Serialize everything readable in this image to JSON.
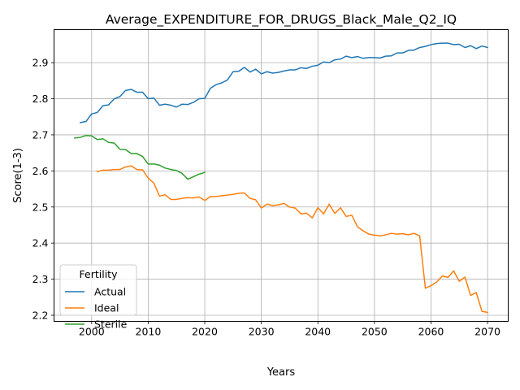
{
  "chart_data": {
    "type": "line",
    "title": "Average_EXPENDITURE_FOR_DRUGS_Black_Male_Q2_IQ",
    "xlabel": "Years",
    "ylabel": "Score(1-3)",
    "xlim": [
      1993.35,
      2073.65
    ],
    "ylim": [
      2.1831,
      2.9915
    ],
    "x_ticks": [
      2000,
      2010,
      2020,
      2030,
      2040,
      2050,
      2060,
      2070
    ],
    "y_ticks": [
      2.2,
      2.3,
      2.4,
      2.5,
      2.6,
      2.7,
      2.8,
      2.9
    ],
    "grid": true,
    "legend": {
      "title": "Fertility",
      "placement": "lower-left"
    },
    "series": [
      {
        "name": "Actual",
        "color": "#1f77b4",
        "x": [
          1998,
          1999,
          2000,
          2001,
          2002,
          2003,
          2004,
          2005,
          2006,
          2007,
          2008,
          2009,
          2010,
          2011,
          2012,
          2013,
          2014,
          2015,
          2016,
          2017,
          2018,
          2019,
          2020,
          2021,
          2022,
          2023,
          2024,
          2025,
          2026,
          2027,
          2028,
          2029,
          2030,
          2031,
          2032,
          2033,
          2034,
          2035,
          2036,
          2037,
          2038,
          2039,
          2040,
          2041,
          2042,
          2043,
          2044,
          2045,
          2046,
          2047,
          2048,
          2049,
          2050,
          2051,
          2052,
          2053,
          2054,
          2055,
          2056,
          2057,
          2058,
          2059,
          2060,
          2061,
          2062,
          2063,
          2064,
          2065,
          2066,
          2067,
          2068,
          2069,
          2070
        ],
        "values": [
          2.734,
          2.737,
          2.758,
          2.762,
          2.781,
          2.783,
          2.8,
          2.806,
          2.823,
          2.826,
          2.818,
          2.818,
          2.8,
          2.802,
          2.782,
          2.785,
          2.782,
          2.777,
          2.785,
          2.784,
          2.79,
          2.8,
          2.801,
          2.829,
          2.839,
          2.844,
          2.852,
          2.875,
          2.876,
          2.887,
          2.874,
          2.882,
          2.869,
          2.875,
          2.871,
          2.873,
          2.877,
          2.88,
          2.88,
          2.886,
          2.884,
          2.89,
          2.893,
          2.902,
          2.9,
          2.908,
          2.91,
          2.918,
          2.914,
          2.917,
          2.912,
          2.914,
          2.914,
          2.913,
          2.918,
          2.919,
          2.927,
          2.927,
          2.934,
          2.935,
          2.942,
          2.945,
          2.95,
          2.953,
          2.954,
          2.954,
          2.95,
          2.951,
          2.942,
          2.947,
          2.939,
          2.946,
          2.942
        ]
      },
      {
        "name": "Ideal",
        "color": "#ff7f0e",
        "x": [
          2001,
          2002,
          2003,
          2004,
          2005,
          2006,
          2007,
          2008,
          2009,
          2010,
          2011,
          2012,
          2013,
          2014,
          2015,
          2016,
          2017,
          2018,
          2019,
          2020,
          2021,
          2022,
          2023,
          2024,
          2025,
          2026,
          2027,
          2028,
          2029,
          2030,
          2031,
          2032,
          2033,
          2034,
          2035,
          2036,
          2037,
          2038,
          2039,
          2040,
          2041,
          2042,
          2043,
          2044,
          2045,
          2046,
          2047,
          2048,
          2049,
          2050,
          2051,
          2052,
          2053,
          2054,
          2055,
          2056,
          2057,
          2058,
          2059,
          2060,
          2061,
          2062,
          2063,
          2064,
          2065,
          2066,
          2067,
          2068,
          2069,
          2070
        ],
        "values": [
          2.598,
          2.602,
          2.602,
          2.604,
          2.604,
          2.611,
          2.614,
          2.604,
          2.603,
          2.58,
          2.566,
          2.53,
          2.534,
          2.521,
          2.521,
          2.524,
          2.526,
          2.525,
          2.528,
          2.518,
          2.529,
          2.529,
          2.531,
          2.533,
          2.535,
          2.538,
          2.539,
          2.524,
          2.52,
          2.497,
          2.508,
          2.504,
          2.506,
          2.51,
          2.5,
          2.497,
          2.481,
          2.483,
          2.47,
          2.498,
          2.481,
          2.508,
          2.482,
          2.498,
          2.474,
          2.477,
          2.445,
          2.434,
          2.425,
          2.422,
          2.42,
          2.423,
          2.427,
          2.425,
          2.426,
          2.423,
          2.427,
          2.42,
          2.275,
          2.282,
          2.292,
          2.309,
          2.305,
          2.323,
          2.294,
          2.306,
          2.255,
          2.263,
          2.211,
          2.208
        ]
      },
      {
        "name": "Sterile",
        "color": "#2ca02c",
        "x": [
          1997,
          1998,
          1999,
          2000,
          2001,
          2002,
          2003,
          2004,
          2005,
          2006,
          2007,
          2008,
          2009,
          2010,
          2011,
          2012,
          2013,
          2014,
          2015,
          2016,
          2017,
          2018,
          2019,
          2020
        ],
        "values": [
          2.691,
          2.693,
          2.698,
          2.697,
          2.687,
          2.689,
          2.679,
          2.677,
          2.66,
          2.659,
          2.648,
          2.648,
          2.64,
          2.619,
          2.619,
          2.616,
          2.608,
          2.604,
          2.601,
          2.593,
          2.577,
          2.584,
          2.591,
          2.596
        ]
      }
    ]
  }
}
